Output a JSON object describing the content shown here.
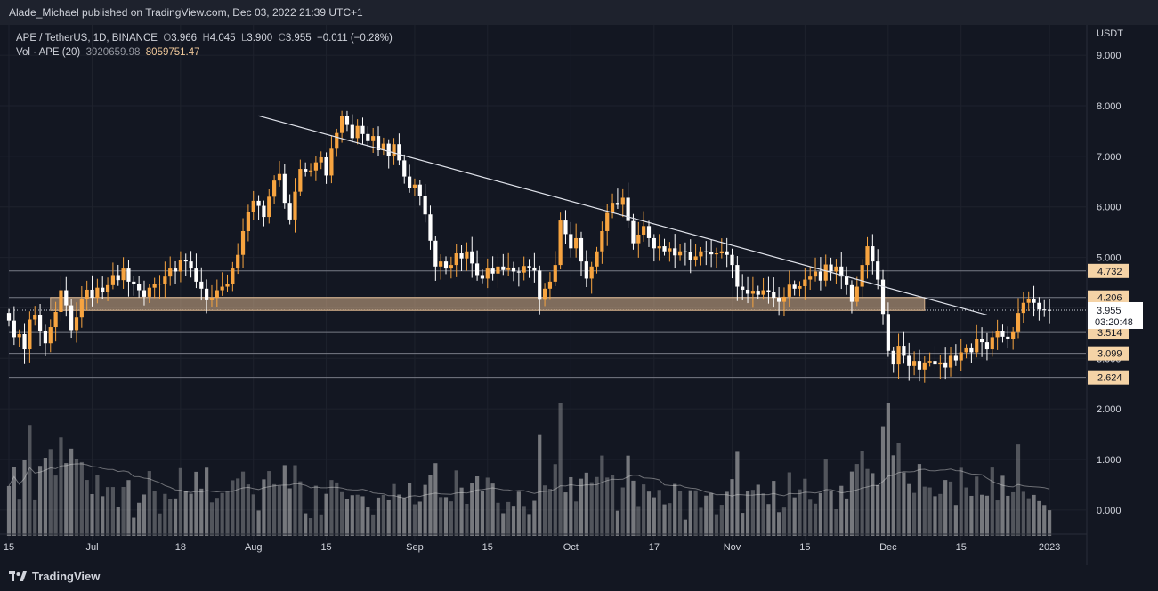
{
  "header": {
    "publish_text": "Alade_Michael published on TradingView.com, Dec 03, 2022 21:39 UTC+1"
  },
  "legend": {
    "symbol": "APE / TetherUS, 1D, BINANCE",
    "o_label": "O",
    "o": "3.966",
    "h_label": "H",
    "h": "4.045",
    "l_label": "L",
    "l": "3.900",
    "c_label": "C",
    "c": "3.955",
    "change": "−0.011 (−0.28%)",
    "vol_label": "Vol · APE (20)",
    "vol_value": "3920659.98",
    "vol_ma": "8059751.47"
  },
  "footer": {
    "brand": "TradingView"
  },
  "colors": {
    "background": "#131722",
    "up": "#f7a440",
    "down": "#ffffff",
    "zone": "#d9b38c",
    "grid": "#1e222d"
  },
  "chart_data": {
    "type": "candlestick",
    "symbol": "APE / TetherUS",
    "interval": "1D",
    "exchange": "BINANCE",
    "currency_label": "USDT",
    "y_ticks": [
      "9.000",
      "8.000",
      "7.000",
      "6.000",
      "5.000",
      "4.000",
      "3.000",
      "2.000",
      "1.000",
      "0.000"
    ],
    "y_tick_values": [
      9,
      8,
      7,
      6,
      5,
      4,
      3,
      2,
      1,
      0
    ],
    "x_ticks": [
      "15",
      "Jul",
      "18",
      "Aug",
      "15",
      "Sep",
      "15",
      "Oct",
      "17",
      "Nov",
      "15",
      "Dec",
      "15",
      "2023"
    ],
    "x_tick_dates": [
      "2022-06-15",
      "2022-07-01",
      "2022-07-18",
      "2022-08-01",
      "2022-08-15",
      "2022-09-01",
      "2022-09-15",
      "2022-10-01",
      "2022-10-17",
      "2022-11-01",
      "2022-11-15",
      "2022-12-01",
      "2022-12-15",
      "2023-01-01"
    ],
    "start_date": "2022-06-15",
    "end_date": "2023-01-08",
    "y_range": [
      -0.6,
      9.6
    ],
    "horizontal_levels": [
      {
        "label": "4.732",
        "value": 4.732
      },
      {
        "label": "4.206",
        "value": 4.206
      },
      {
        "label": "3.514",
        "value": 3.514
      },
      {
        "label": "3.099",
        "value": 3.099
      },
      {
        "label": "2.624",
        "value": 2.624
      }
    ],
    "support_zone": {
      "from": 3.95,
      "to": 4.206,
      "start_date": "2022-06-23",
      "end_date": "2022-12-08"
    },
    "trendline": {
      "from": {
        "date": "2022-08-02",
        "value": 7.8
      },
      "to": {
        "date": "2022-12-20",
        "value": 3.86
      }
    },
    "last_price": {
      "label": "3.955",
      "value": 3.955,
      "countdown": "03:20:48"
    },
    "closes": [
      3.75,
      3.42,
      3.48,
      3.18,
      3.77,
      3.86,
      3.55,
      3.3,
      3.62,
      3.92,
      4.35,
      4.05,
      3.56,
      3.81,
      4.17,
      4.36,
      4.2,
      4.4,
      4.32,
      4.45,
      4.65,
      4.55,
      4.78,
      4.52,
      4.48,
      4.35,
      4.22,
      4.4,
      4.48,
      4.48,
      4.62,
      4.78,
      4.72,
      4.95,
      4.92,
      4.78,
      4.52,
      4.38,
      4.15,
      4.2,
      4.35,
      4.42,
      4.48,
      4.78,
      5.05,
      5.52,
      5.9,
      6.12,
      6.02,
      5.8,
      6.2,
      6.52,
      6.65,
      6.08,
      5.75,
      6.3,
      6.75,
      6.7,
      6.72,
      6.88,
      6.98,
      6.62,
      7.15,
      7.46,
      7.8,
      7.62,
      7.36,
      7.6,
      7.44,
      7.3,
      7.4,
      7.12,
      7.25,
      7.0,
      7.24,
      6.92,
      6.6,
      6.38,
      6.44,
      6.21,
      5.85,
      5.33,
      4.82,
      4.92,
      4.78,
      4.85,
      5.08,
      4.98,
      5.12,
      4.88,
      4.65,
      4.58,
      4.78,
      4.68,
      4.82,
      4.75,
      4.8,
      4.72,
      4.7,
      4.83,
      4.8,
      4.74,
      4.16,
      4.38,
      4.52,
      4.85,
      5.73,
      5.46,
      5.18,
      5.38,
      4.92,
      4.58,
      4.82,
      5.12,
      5.52,
      5.88,
      6.08,
      6.04,
      6.18,
      5.72,
      5.28,
      5.45,
      5.62,
      5.38,
      5.18,
      5.22,
      5.12,
      5.18,
      5.04,
      5.12,
      5.1,
      4.95,
      5.02,
      5.12,
      5.1,
      5.06,
      5.08,
      5.12,
      5.05,
      4.85,
      4.42,
      4.36,
      4.28,
      4.34,
      4.26,
      4.35,
      4.32,
      4.2,
      4.12,
      4.22,
      4.46,
      4.38,
      4.43,
      4.56,
      4.62,
      4.72,
      4.54,
      4.86,
      4.72,
      4.82,
      4.62,
      4.45,
      4.12,
      4.42,
      4.85,
      5.22,
      4.92,
      4.56,
      3.88,
      3.15,
      2.88,
      3.25,
      3.05,
      2.85,
      2.95,
      2.78,
      2.92,
      2.95,
      2.88,
      2.92,
      2.82,
      3.05,
      2.96,
      3.12,
      3.2,
      3.12,
      3.38,
      3.32,
      3.18,
      3.42,
      3.55,
      3.43,
      3.38,
      3.52,
      3.9,
      4.1,
      4.18,
      4.1,
      3.97,
      3.96,
      3.955
    ],
    "volume_ma_series": "Vol · APE (20)"
  }
}
